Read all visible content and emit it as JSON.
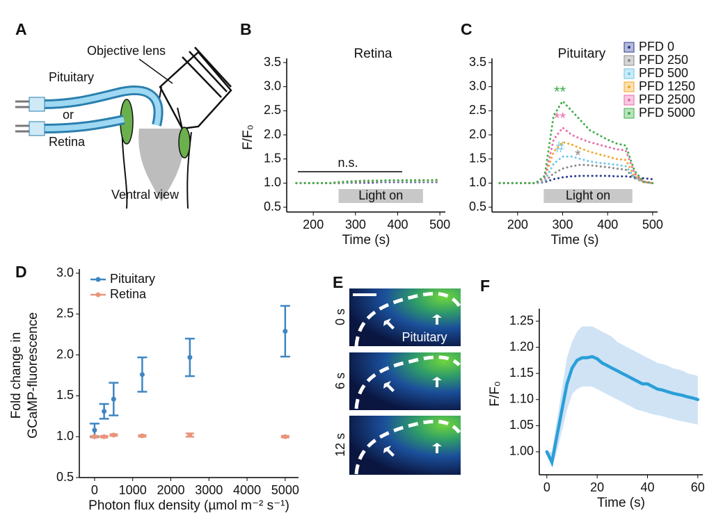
{
  "panel_labels": [
    "A",
    "B",
    "C",
    "D",
    "E",
    "F"
  ],
  "diagram": {
    "labels": [
      "Objective lens",
      "Pituitary",
      "or",
      "Retina",
      "Ventral view"
    ]
  },
  "images": {
    "time_labels": [
      "0 s",
      "6 s",
      "12 s"
    ],
    "region_label": "Pituitary"
  },
  "chart_data": [
    {
      "type": "line",
      "title": "Retina",
      "xlabel": "Time (s)",
      "ylabel": "F/F₀",
      "line_style": "dotted",
      "x": [
        160,
        180,
        200,
        220,
        240,
        260,
        280,
        300,
        320,
        340,
        360,
        380,
        400,
        420,
        440,
        460,
        480,
        500
      ],
      "xlim": [
        137,
        513
      ],
      "xticks": [
        200,
        300,
        400,
        500
      ],
      "ylim": [
        0.4,
        3.5
      ],
      "yticks": [
        0.5,
        {
          "value": 1,
          "label": "1.0"
        },
        1.5,
        {
          "value": 2,
          "label": "2.0"
        },
        2.5,
        {
          "value": 3,
          "label": "3.0"
        },
        3.5
      ],
      "light_on": {
        "label": "Light on",
        "range": [
          260,
          460
        ]
      },
      "annotation": "n.s.",
      "series": [
        {
          "color": "#2b3a8f",
          "values": [
            1,
            1,
            1,
            1,
            1,
            1,
            1.01,
            1.01,
            1.01,
            1.01,
            1.02,
            1.02,
            1.02,
            1.02,
            1.02,
            1.02,
            1.02,
            1.02
          ]
        },
        {
          "color": "#8a8a8a",
          "values": [
            1,
            1,
            1,
            1,
            1,
            1.01,
            1.02,
            1.02,
            1.03,
            1.03,
            1.03,
            1.03,
            1.03,
            1.03,
            1.03,
            1.03,
            1.03,
            1.03
          ]
        },
        {
          "color": "#6ec6e6",
          "values": [
            1,
            1,
            1,
            1,
            1,
            1.01,
            1.02,
            1.03,
            1.03,
            1.04,
            1.04,
            1.04,
            1.04,
            1.04,
            1.04,
            1.04,
            1.04,
            1.04
          ]
        },
        {
          "color": "#f5a623",
          "values": [
            1,
            1,
            1,
            1,
            1,
            1.01,
            1.03,
            1.03,
            1.04,
            1.04,
            1.05,
            1.05,
            1.05,
            1.05,
            1.05,
            1.05,
            1.05,
            1.05
          ]
        },
        {
          "color": "#e86aa8",
          "values": [
            1,
            1,
            1,
            1,
            1,
            1.02,
            1.03,
            1.04,
            1.04,
            1.05,
            1.05,
            1.05,
            1.05,
            1.06,
            1.06,
            1.06,
            1.06,
            1.06
          ]
        },
        {
          "color": "#3cae49",
          "values": [
            1,
            1,
            1,
            1,
            1,
            1.02,
            1.03,
            1.04,
            1.05,
            1.05,
            1.05,
            1.06,
            1.06,
            1.06,
            1.06,
            1.06,
            1.06,
            1.07
          ]
        }
      ]
    },
    {
      "type": "line",
      "title": "Pituitary",
      "xlabel": "Time (s)",
      "line_style": "dotted",
      "legend": "right",
      "x": [
        160,
        180,
        200,
        220,
        240,
        260,
        280,
        300,
        320,
        340,
        360,
        380,
        400,
        420,
        440,
        460,
        480,
        500
      ],
      "xlim": [
        143,
        511
      ],
      "xticks": [
        200,
        300,
        400,
        500
      ],
      "ylim": [
        0.4,
        3.5
      ],
      "yticks": [
        0.5,
        {
          "value": 1,
          "label": "1.0"
        },
        1.5,
        {
          "value": 2,
          "label": "2.0"
        },
        2.5,
        {
          "value": 3,
          "label": "3.0"
        },
        3.5
      ],
      "light_on": {
        "label": "Light on",
        "range": [
          258,
          455
        ]
      },
      "series": [
        {
          "name": "PFD 0",
          "color": "#2b3a8f",
          "values": [
            1,
            1,
            1,
            1,
            1,
            1.02,
            1.08,
            1.12,
            1.14,
            1.15,
            1.15,
            1.15,
            1.15,
            1.14,
            1.14,
            1.12,
            1.1,
            1.08
          ]
        },
        {
          "name": "PFD 250",
          "color": "#8a8a8a",
          "annotation": "*",
          "values": [
            1,
            1,
            1,
            1,
            1,
            1.03,
            1.2,
            1.3,
            1.35,
            1.38,
            1.37,
            1.35,
            1.33,
            1.3,
            1.28,
            1.1,
            1.02,
            1
          ]
        },
        {
          "name": "PFD 500",
          "color": "#6ec6e6",
          "annotation": "#",
          "values": [
            1,
            1,
            1,
            1,
            1,
            1.05,
            1.4,
            1.55,
            1.55,
            1.5,
            1.45,
            1.42,
            1.4,
            1.38,
            1.35,
            1.12,
            1.02,
            1
          ]
        },
        {
          "name": "PFD 1250",
          "color": "#f5a623",
          "values": [
            1,
            1,
            1,
            1,
            1,
            1.1,
            1.65,
            1.85,
            1.8,
            1.72,
            1.65,
            1.6,
            1.55,
            1.5,
            1.48,
            1.15,
            1.02,
            1
          ]
        },
        {
          "name": "PFD 2500",
          "color": "#e86aa8",
          "annotation": "**",
          "values": [
            1,
            1,
            1,
            1,
            1,
            1.1,
            1.9,
            2.15,
            2,
            1.92,
            1.85,
            1.8,
            1.75,
            1.7,
            1.68,
            1.2,
            1.03,
            1
          ]
        },
        {
          "name": "PFD 5000",
          "color": "#3cae49",
          "annotation": "**",
          "values": [
            1,
            1,
            1,
            1,
            1,
            1.15,
            2.4,
            2.7,
            2.5,
            2.3,
            2.1,
            2,
            1.9,
            1.82,
            1.78,
            1.25,
            1.03,
            1
          ]
        }
      ]
    },
    {
      "type": "errorbar",
      "xlabel": "Photon flux density (µmol m⁻² s⁻¹)",
      "ylabel": [
        "Fold change in",
        "GCaMP-fluorescence"
      ],
      "legend": "upper left",
      "x": [
        0,
        250,
        500,
        1250,
        2500,
        5000
      ],
      "xlim": [
        -400,
        5350
      ],
      "xticks": [
        0,
        1000,
        2000,
        3000,
        4000,
        5000
      ],
      "ylim": [
        0.5,
        3.0
      ],
      "yticks": [
        0.5,
        {
          "value": 1,
          "label": "1.0"
        },
        1.5,
        {
          "value": 2,
          "label": "2.0"
        },
        2.5,
        {
          "value": 3,
          "label": "3.0"
        }
      ],
      "series": [
        {
          "name": "Pituitary",
          "color": "#3f86c2",
          "values": [
            1.08,
            1.31,
            1.46,
            1.76,
            1.97,
            2.29
          ],
          "errors": [
            0.08,
            0.09,
            0.2,
            0.21,
            0.23,
            0.31
          ]
        },
        {
          "name": "Retina",
          "color": "#e8957a",
          "values": [
            1.0,
            1.0,
            1.02,
            1.01,
            1.02,
            1.0
          ],
          "errors": [
            0.01,
            0.01,
            0.01,
            0.01,
            0.02,
            0.01
          ]
        }
      ]
    },
    {
      "type": "line",
      "xlabel": "Time (s)",
      "ylabel": "F/F₀",
      "line_style": "solid",
      "x": [
        0,
        2,
        4,
        6,
        8,
        10,
        12,
        14,
        16,
        18,
        20,
        22,
        24,
        26,
        28,
        30,
        32,
        34,
        36,
        38,
        40,
        42,
        44,
        46,
        48,
        50,
        52,
        54,
        56,
        58,
        60
      ],
      "xlim": [
        -3,
        62
      ],
      "xticks": [
        0,
        20,
        40,
        60
      ],
      "ylim": [
        0.956,
        1.266
      ],
      "yticks": [
        {
          "value": 1,
          "label": "1.00"
        },
        1.05,
        {
          "value": 1.1,
          "label": "1.10"
        },
        1.15,
        {
          "value": 1.2,
          "label": "1.20"
        },
        1.25
      ],
      "series": [
        {
          "color": "#2a9fd8",
          "band_color": "#cfe3f5",
          "values": [
            1.0,
            0.98,
            1.03,
            1.08,
            1.13,
            1.16,
            1.175,
            1.18,
            1.18,
            1.182,
            1.178,
            1.17,
            1.165,
            1.16,
            1.155,
            1.15,
            1.145,
            1.14,
            1.135,
            1.13,
            1.13,
            1.125,
            1.12,
            1.118,
            1.115,
            1.112,
            1.11,
            1.108,
            1.105,
            1.103,
            1.1
          ],
          "upper": [
            1.0,
            1.0,
            1.06,
            1.12,
            1.18,
            1.21,
            1.23,
            1.24,
            1.24,
            1.24,
            1.235,
            1.23,
            1.225,
            1.22,
            1.21,
            1.205,
            1.2,
            1.195,
            1.19,
            1.185,
            1.18,
            1.175,
            1.17,
            1.168,
            1.165,
            1.16,
            1.158,
            1.155,
            1.15,
            1.148,
            1.145
          ],
          "lower": [
            1.0,
            0.97,
            1.0,
            1.04,
            1.08,
            1.11,
            1.12,
            1.125,
            1.125,
            1.125,
            1.12,
            1.115,
            1.11,
            1.105,
            1.1,
            1.095,
            1.09,
            1.085,
            1.08,
            1.078,
            1.075,
            1.072,
            1.07,
            1.068,
            1.065,
            1.063,
            1.06,
            1.058,
            1.056,
            1.054,
            1.052
          ]
        }
      ]
    }
  ]
}
